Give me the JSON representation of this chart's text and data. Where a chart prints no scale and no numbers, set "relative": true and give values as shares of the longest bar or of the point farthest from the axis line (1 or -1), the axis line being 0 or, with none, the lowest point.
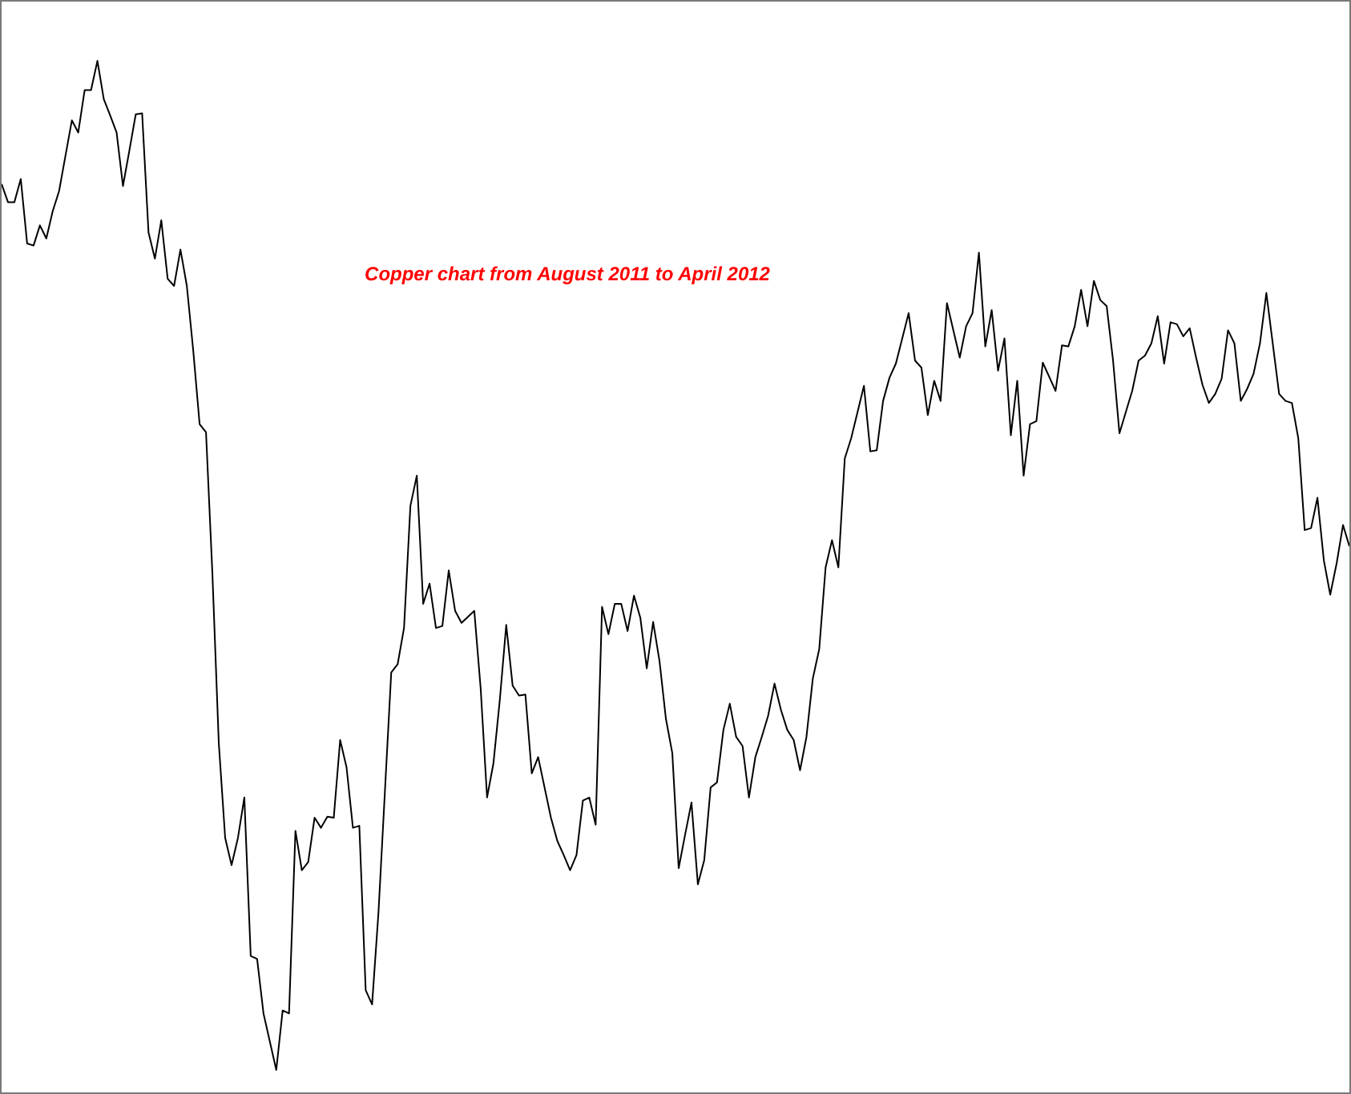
{
  "chart_data": {
    "type": "line",
    "title": "Copper chart from August 2011 to April 2012",
    "relative": true,
    "categories": [
      null,
      null,
      null,
      null,
      null,
      null,
      null,
      null,
      null,
      null,
      null,
      null,
      null,
      null,
      null,
      null,
      null,
      null,
      null,
      null,
      null,
      null,
      null,
      null,
      null,
      null,
      null,
      null,
      null,
      null,
      null,
      null,
      null,
      null,
      null,
      null,
      null,
      null,
      null,
      null,
      null,
      null,
      null,
      null,
      null,
      null,
      null,
      null,
      null,
      null,
      null,
      null,
      null,
      null,
      null,
      null,
      null,
      null,
      null,
      null,
      null,
      null,
      null,
      null,
      null,
      null,
      null,
      null,
      null,
      null,
      null,
      null,
      null,
      null,
      null,
      null,
      null,
      null,
      null,
      null,
      null,
      null,
      null,
      null,
      null,
      null,
      null,
      null,
      null,
      null,
      null,
      null,
      null,
      null,
      null,
      null,
      null,
      null,
      null,
      null,
      null,
      null,
      null,
      null,
      null,
      null,
      null,
      null,
      null,
      null,
      null,
      null,
      null,
      null,
      null,
      null,
      null,
      null,
      null,
      null,
      null,
      null,
      null,
      null,
      null,
      null,
      null,
      null,
      null,
      null,
      null,
      null,
      null,
      null,
      null,
      null,
      null,
      null,
      null,
      null,
      null,
      null,
      null,
      null,
      null,
      null,
      null,
      null,
      null,
      null,
      null,
      null,
      null,
      null,
      null,
      null,
      null,
      null,
      null,
      null,
      null,
      null,
      null,
      null,
      null,
      null,
      null,
      null,
      null,
      null,
      null,
      null,
      null,
      null,
      null,
      null,
      null,
      null,
      null,
      null,
      null,
      null,
      null,
      null,
      null,
      null,
      null,
      null,
      null,
      null,
      null,
      null,
      null,
      null,
      null,
      null,
      null,
      null,
      null,
      null,
      null,
      null,
      null,
      null,
      null,
      null,
      null,
      null,
      null,
      null,
      null,
      null
    ],
    "series": [
      {
        "color": "#000000",
        "values": [
          0.878,
          0.86,
          0.86,
          0.883,
          0.819,
          0.817,
          0.837,
          0.824,
          0.851,
          0.871,
          0.906,
          0.941,
          0.929,
          0.971,
          0.971,
          1,
          0.962,
          0.946,
          0.929,
          0.876,
          0.911,
          0.947,
          0.948,
          0.83,
          0.804,
          0.842,
          0.784,
          0.777,
          0.813,
          0.777,
          0.713,
          0.64,
          0.632,
          0.492,
          0.324,
          0.23,
          0.203,
          0.23,
          0.27,
          0.113,
          0.11,
          0.056,
          0.028,
          0,
          0.059,
          0.056,
          0.237,
          0.198,
          0.206,
          0.25,
          0.24,
          0.251,
          0.25,
          0.327,
          0.3,
          0.24,
          0.242,
          0.079,
          0.065,
          0.156,
          0.275,
          0.394,
          0.402,
          0.438,
          0.559,
          0.589,
          0.462,
          0.482,
          0.438,
          0.44,
          0.495,
          0.455,
          0.443,
          0.449,
          0.455,
          0.378,
          0.27,
          0.304,
          0.367,
          0.441,
          0.381,
          0.371,
          0.372,
          0.294,
          0.31,
          0.28,
          0.25,
          0.227,
          0.213,
          0.198,
          0.213,
          0.267,
          0.27,
          0.243,
          0.459,
          0.432,
          0.462,
          0.462,
          0.435,
          0.47,
          0.448,
          0.398,
          0.444,
          0.405,
          0.348,
          0.314,
          0.2,
          0.233,
          0.265,
          0.184,
          0.208,
          0.28,
          0.285,
          0.337,
          0.363,
          0.33,
          0.321,
          0.27,
          0.31,
          0.33,
          0.351,
          0.383,
          0.357,
          0.337,
          0.327,
          0.297,
          0.33,
          0.388,
          0.417,
          0.498,
          0.525,
          0.498,
          0.606,
          0.626,
          0.652,
          0.678,
          0.613,
          0.614,
          0.663,
          0.686,
          0.7,
          0.725,
          0.75,
          0.703,
          0.696,
          0.649,
          0.683,
          0.663,
          0.76,
          0.733,
          0.706,
          0.737,
          0.75,
          0.81,
          0.717,
          0.753,
          0.693,
          0.725,
          0.629,
          0.683,
          0.589,
          0.64,
          0.643,
          0.701,
          0.687,
          0.673,
          0.718,
          0.717,
          0.737,
          0.773,
          0.737,
          0.782,
          0.763,
          0.757,
          0.703,
          0.631,
          0.652,
          0.673,
          0.703,
          0.708,
          0.72,
          0.747,
          0.7,
          0.741,
          0.739,
          0.727,
          0.735,
          0.706,
          0.679,
          0.661,
          0.67,
          0.685,
          0.733,
          0.72,
          0.663,
          0.675,
          0.69,
          0.72,
          0.77,
          0.72,
          0.67,
          0.663,
          0.661,
          0.626,
          0.535,
          0.537,
          0.567,
          0.505,
          0.471,
          0.502,
          0.54,
          0.519
        ]
      }
    ]
  }
}
